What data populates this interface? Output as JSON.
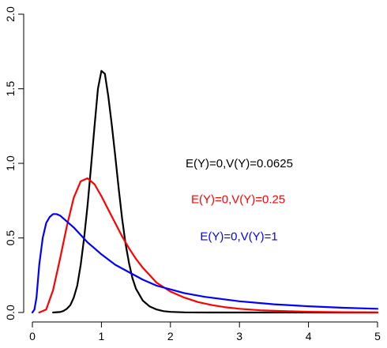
{
  "chart_data": {
    "type": "line",
    "title": "",
    "xlabel": "",
    "ylabel": "",
    "xlim": [
      0,
      5
    ],
    "ylim": [
      0,
      2
    ],
    "x_ticks": [
      0,
      1,
      2,
      3,
      4,
      5
    ],
    "x_tick_labels": [
      "0",
      "1",
      "2",
      "3",
      "4",
      "5"
    ],
    "y_ticks": [
      0,
      0.5,
      1,
      1.5,
      2
    ],
    "y_tick_labels": [
      "0.0",
      "0.5",
      "1.0",
      "1.5",
      "2.0"
    ],
    "grid": false,
    "legend": "none",
    "series": [
      {
        "color": "#000000",
        "points": [
          [
            0.3,
            0.0
          ],
          [
            0.4,
            0.003
          ],
          [
            0.45,
            0.01
          ],
          [
            0.5,
            0.025
          ],
          [
            0.55,
            0.05
          ],
          [
            0.6,
            0.1
          ],
          [
            0.65,
            0.18
          ],
          [
            0.7,
            0.32
          ],
          [
            0.75,
            0.5
          ],
          [
            0.8,
            0.72
          ],
          [
            0.85,
            0.98
          ],
          [
            0.9,
            1.25
          ],
          [
            0.95,
            1.5
          ],
          [
            1.0,
            1.62
          ],
          [
            1.05,
            1.6
          ],
          [
            1.1,
            1.45
          ],
          [
            1.15,
            1.26
          ],
          [
            1.2,
            1.05
          ],
          [
            1.25,
            0.83
          ],
          [
            1.3,
            0.63
          ],
          [
            1.35,
            0.46
          ],
          [
            1.4,
            0.33
          ],
          [
            1.45,
            0.23
          ],
          [
            1.5,
            0.16
          ],
          [
            1.6,
            0.08
          ],
          [
            1.7,
            0.04
          ],
          [
            1.8,
            0.02
          ],
          [
            1.9,
            0.009
          ],
          [
            2.0,
            0.004
          ],
          [
            2.2,
            0.001
          ],
          [
            2.5,
            0.0
          ],
          [
            5.0,
            0.0
          ]
        ]
      },
      {
        "color": "#ff0000",
        "points": [
          [
            0.1,
            0.0
          ],
          [
            0.2,
            0.02
          ],
          [
            0.3,
            0.15
          ],
          [
            0.4,
            0.36
          ],
          [
            0.5,
            0.58
          ],
          [
            0.6,
            0.77
          ],
          [
            0.7,
            0.88
          ],
          [
            0.8,
            0.9
          ],
          [
            0.9,
            0.86
          ],
          [
            1.0,
            0.78
          ],
          [
            1.1,
            0.69
          ],
          [
            1.2,
            0.6
          ],
          [
            1.3,
            0.51
          ],
          [
            1.4,
            0.43
          ],
          [
            1.5,
            0.36
          ],
          [
            1.6,
            0.3
          ],
          [
            1.7,
            0.25
          ],
          [
            1.8,
            0.2
          ],
          [
            1.9,
            0.17
          ],
          [
            2.0,
            0.14
          ],
          [
            2.2,
            0.1
          ],
          [
            2.4,
            0.07
          ],
          [
            2.6,
            0.05
          ],
          [
            2.8,
            0.035
          ],
          [
            3.0,
            0.025
          ],
          [
            3.3,
            0.015
          ],
          [
            3.6,
            0.01
          ],
          [
            4.0,
            0.005
          ],
          [
            4.5,
            0.002
          ],
          [
            5.0,
            0.001
          ]
        ]
      },
      {
        "color": "#0000ff",
        "points": [
          [
            0.0,
            0.0
          ],
          [
            0.03,
            0.02
          ],
          [
            0.06,
            0.1
          ],
          [
            0.1,
            0.32
          ],
          [
            0.15,
            0.5
          ],
          [
            0.2,
            0.6
          ],
          [
            0.25,
            0.64
          ],
          [
            0.3,
            0.66
          ],
          [
            0.35,
            0.66
          ],
          [
            0.4,
            0.65
          ],
          [
            0.5,
            0.61
          ],
          [
            0.6,
            0.57
          ],
          [
            0.7,
            0.52
          ],
          [
            0.8,
            0.47
          ],
          [
            0.9,
            0.43
          ],
          [
            1.0,
            0.39
          ],
          [
            1.2,
            0.32
          ],
          [
            1.4,
            0.27
          ],
          [
            1.6,
            0.22
          ],
          [
            1.8,
            0.18
          ],
          [
            2.0,
            0.155
          ],
          [
            2.2,
            0.13
          ],
          [
            2.5,
            0.105
          ],
          [
            3.0,
            0.075
          ],
          [
            3.5,
            0.055
          ],
          [
            4.0,
            0.042
          ],
          [
            4.5,
            0.032
          ],
          [
            5.0,
            0.025
          ]
        ]
      }
    ],
    "annotations": [
      {
        "text": "E(Y)=0,V(Y)=0.0625",
        "x": 2.22,
        "y": 1.0,
        "color": "#000000"
      },
      {
        "text": "E(Y)=0,V(Y)=0.25",
        "x": 2.3,
        "y": 0.76,
        "color": "#ff0000"
      },
      {
        "text": "E(Y)=0,V(Y)=1",
        "x": 2.43,
        "y": 0.51,
        "color": "#0000ff"
      }
    ]
  }
}
